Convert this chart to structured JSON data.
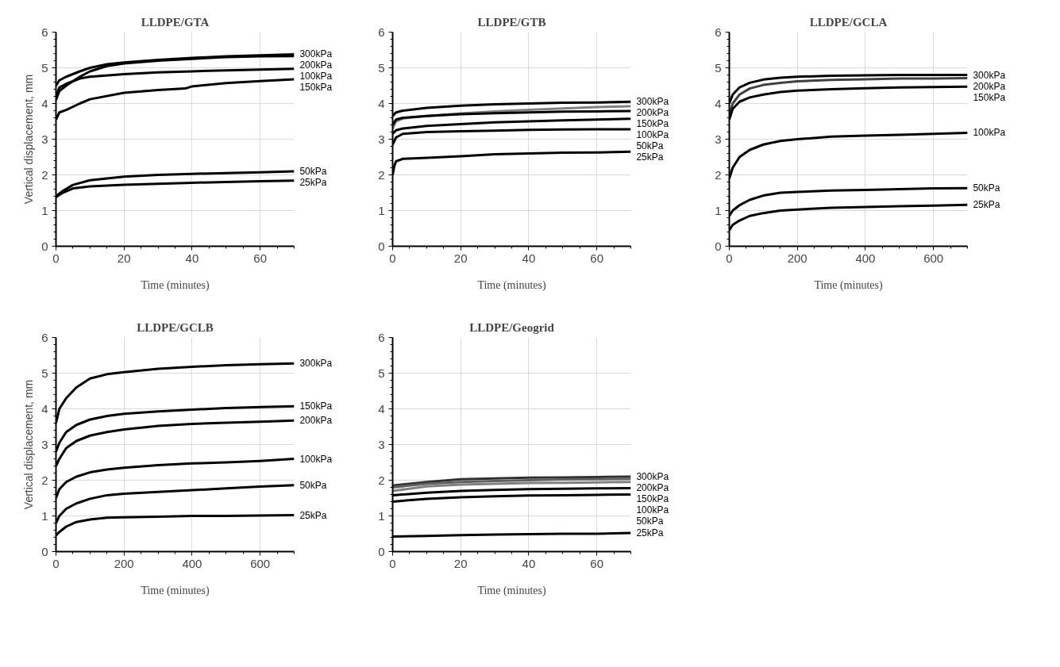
{
  "chart_data": [
    {
      "type": "line",
      "title": "LLDPE/GTA",
      "xlabel": "Time (minutes)",
      "ylabel": "Vertical displacement, mm",
      "xlim": [
        0,
        70
      ],
      "ylim": [
        0,
        6
      ],
      "xticks": [
        0,
        20,
        40,
        60
      ],
      "yticks": [
        0,
        1,
        2,
        3,
        4,
        5,
        6
      ],
      "grid": true,
      "series": [
        {
          "name": "300kPa",
          "color": "#000000",
          "x": [
            0,
            1,
            3,
            7,
            10,
            15,
            20,
            30,
            40,
            50,
            60,
            70
          ],
          "values": [
            4.5,
            4.65,
            4.75,
            4.9,
            5.0,
            5.1,
            5.15,
            5.22,
            5.28,
            5.32,
            5.35,
            5.38
          ]
        },
        {
          "name": "200kPa",
          "color": "#000000",
          "x": [
            0,
            1,
            3,
            7,
            10,
            15,
            20,
            30,
            40,
            50,
            60,
            70
          ],
          "values": [
            4.1,
            4.35,
            4.5,
            4.75,
            4.9,
            5.05,
            5.12,
            5.2,
            5.25,
            5.3,
            5.32,
            5.33
          ]
        },
        {
          "name": "100kPa",
          "color": "#000000",
          "x": [
            0,
            1,
            3,
            7,
            10,
            20,
            30,
            40,
            50,
            60,
            70
          ],
          "values": [
            4.2,
            4.45,
            4.55,
            4.7,
            4.75,
            4.82,
            4.87,
            4.9,
            4.93,
            4.95,
            4.97
          ]
        },
        {
          "name": "150kPa",
          "color": "#000000",
          "x": [
            0,
            1,
            3,
            7,
            10,
            20,
            30,
            38,
            40,
            50,
            60,
            70
          ],
          "values": [
            3.55,
            3.75,
            3.82,
            4.0,
            4.12,
            4.3,
            4.38,
            4.42,
            4.48,
            4.57,
            4.63,
            4.68
          ]
        },
        {
          "name": "50kPa",
          "color": "#000000",
          "x": [
            0,
            2,
            5,
            10,
            20,
            30,
            40,
            50,
            60,
            70
          ],
          "values": [
            1.4,
            1.55,
            1.72,
            1.85,
            1.95,
            2.0,
            2.03,
            2.05,
            2.07,
            2.1
          ]
        },
        {
          "name": "25kPa",
          "color": "#000000",
          "x": [
            0,
            2,
            5,
            10,
            20,
            30,
            40,
            50,
            60,
            70
          ],
          "values": [
            1.38,
            1.5,
            1.62,
            1.68,
            1.72,
            1.75,
            1.78,
            1.8,
            1.82,
            1.84
          ]
        }
      ]
    },
    {
      "type": "line",
      "title": "LLDPE/GTB",
      "xlabel": "Time (minutes)",
      "xlim": [
        0,
        70
      ],
      "ylim": [
        0,
        6
      ],
      "xticks": [
        0,
        20,
        40,
        60
      ],
      "yticks": [
        0,
        1,
        2,
        3,
        4,
        5,
        6
      ],
      "grid": true,
      "series": [
        {
          "name": "300kPa",
          "color": "#000000",
          "x": [
            0,
            1,
            3,
            10,
            20,
            30,
            40,
            50,
            60,
            70
          ],
          "values": [
            3.65,
            3.75,
            3.8,
            3.88,
            3.94,
            3.98,
            4.0,
            4.02,
            4.03,
            4.05
          ]
        },
        {
          "name": "200kPa",
          "color": "#808080",
          "x": [
            0,
            1,
            3,
            10,
            20,
            30,
            40,
            50,
            60,
            70
          ],
          "values": [
            3.3,
            3.5,
            3.58,
            3.65,
            3.72,
            3.78,
            3.82,
            3.86,
            3.9,
            3.92
          ]
        },
        {
          "name": "150kPa",
          "color": "#000000",
          "x": [
            0,
            1,
            3,
            10,
            20,
            30,
            40,
            50,
            60,
            70
          ],
          "values": [
            3.4,
            3.55,
            3.6,
            3.65,
            3.7,
            3.73,
            3.75,
            3.77,
            3.78,
            3.79
          ]
        },
        {
          "name": "100kPa",
          "color": "#000000",
          "x": [
            0,
            1,
            3,
            10,
            20,
            30,
            40,
            50,
            60,
            70
          ],
          "values": [
            3.15,
            3.25,
            3.3,
            3.37,
            3.42,
            3.47,
            3.5,
            3.53,
            3.55,
            3.57
          ]
        },
        {
          "name": "50kPa",
          "color": "#000000",
          "x": [
            0,
            1,
            3,
            10,
            20,
            30,
            40,
            50,
            60,
            70
          ],
          "values": [
            2.85,
            3.05,
            3.15,
            3.2,
            3.22,
            3.24,
            3.26,
            3.27,
            3.28,
            3.28
          ]
        },
        {
          "name": "25kPa",
          "color": "#000000",
          "x": [
            0,
            0.5,
            1,
            3,
            10,
            20,
            25,
            30,
            40,
            50,
            60,
            70
          ],
          "values": [
            2.0,
            2.25,
            2.38,
            2.45,
            2.48,
            2.52,
            2.55,
            2.58,
            2.6,
            2.62,
            2.63,
            2.65
          ]
        }
      ]
    },
    {
      "type": "line",
      "title": "LLDPE/GCLA",
      "xlabel": "Time (minutes)",
      "xlim": [
        0,
        700
      ],
      "ylim": [
        0,
        6
      ],
      "xticks": [
        0,
        200,
        400,
        600
      ],
      "yticks": [
        0,
        1,
        2,
        3,
        4,
        5,
        6
      ],
      "grid": true,
      "series": [
        {
          "name": "300kPa",
          "color": "#000000",
          "x": [
            0,
            10,
            30,
            60,
            100,
            150,
            200,
            300,
            400,
            500,
            600,
            700
          ],
          "values": [
            4.0,
            4.25,
            4.45,
            4.58,
            4.67,
            4.72,
            4.75,
            4.78,
            4.79,
            4.8,
            4.8,
            4.8
          ]
        },
        {
          "name": "200kPa",
          "color": "#404040",
          "x": [
            0,
            10,
            30,
            60,
            100,
            150,
            200,
            300,
            400,
            500,
            600,
            700
          ],
          "values": [
            3.7,
            4.0,
            4.25,
            4.42,
            4.52,
            4.58,
            4.62,
            4.66,
            4.68,
            4.7,
            4.7,
            4.71
          ]
        },
        {
          "name": "150kPa",
          "color": "#000000",
          "x": [
            0,
            10,
            30,
            60,
            100,
            150,
            200,
            300,
            400,
            500,
            600,
            700
          ],
          "values": [
            3.55,
            3.85,
            4.05,
            4.17,
            4.25,
            4.32,
            4.36,
            4.4,
            4.43,
            4.45,
            4.46,
            4.47
          ]
        },
        {
          "name": "100kPa",
          "color": "#000000",
          "x": [
            0,
            10,
            30,
            60,
            100,
            150,
            200,
            300,
            400,
            500,
            600,
            700
          ],
          "values": [
            1.9,
            2.2,
            2.5,
            2.7,
            2.85,
            2.95,
            3.0,
            3.07,
            3.1,
            3.12,
            3.15,
            3.18
          ]
        },
        {
          "name": "50kPa",
          "color": "#000000",
          "x": [
            0,
            10,
            30,
            60,
            100,
            150,
            200,
            300,
            400,
            500,
            600,
            700
          ],
          "values": [
            0.85,
            1.0,
            1.15,
            1.3,
            1.42,
            1.5,
            1.52,
            1.56,
            1.58,
            1.6,
            1.62,
            1.63
          ]
        },
        {
          "name": "25kPa",
          "color": "#000000",
          "x": [
            0,
            10,
            30,
            60,
            100,
            150,
            200,
            300,
            400,
            500,
            600,
            700
          ],
          "values": [
            0.45,
            0.6,
            0.72,
            0.85,
            0.93,
            1.0,
            1.03,
            1.08,
            1.1,
            1.12,
            1.14,
            1.16
          ]
        }
      ]
    },
    {
      "type": "line",
      "title": "LLDPE/GCLB",
      "xlabel": "Time (minutes)",
      "ylabel": "Vertical displacement, mm",
      "xlim": [
        0,
        700
      ],
      "ylim": [
        0,
        6
      ],
      "xticks": [
        0,
        200,
        400,
        600
      ],
      "yticks": [
        0,
        1,
        2,
        3,
        4,
        5,
        6
      ],
      "grid": true,
      "series": [
        {
          "name": "300kPa",
          "color": "#000000",
          "x": [
            0,
            10,
            30,
            60,
            100,
            150,
            200,
            300,
            400,
            500,
            600,
            700
          ],
          "values": [
            3.6,
            4.0,
            4.3,
            4.6,
            4.85,
            4.97,
            5.03,
            5.12,
            5.18,
            5.22,
            5.25,
            5.27
          ]
        },
        {
          "name": "150kPa",
          "color": "#000000",
          "x": [
            0,
            10,
            30,
            60,
            100,
            150,
            200,
            300,
            400,
            500,
            600,
            700
          ],
          "values": [
            2.8,
            3.05,
            3.35,
            3.55,
            3.7,
            3.8,
            3.86,
            3.93,
            3.98,
            4.02,
            4.05,
            4.07
          ]
        },
        {
          "name": "200kPa",
          "color": "#000000",
          "x": [
            0,
            10,
            30,
            60,
            100,
            150,
            200,
            300,
            400,
            500,
            600,
            700
          ],
          "values": [
            2.4,
            2.6,
            2.9,
            3.1,
            3.25,
            3.35,
            3.42,
            3.52,
            3.58,
            3.61,
            3.64,
            3.67
          ]
        },
        {
          "name": "100kPa",
          "color": "#000000",
          "x": [
            0,
            10,
            30,
            60,
            100,
            150,
            200,
            300,
            400,
            500,
            600,
            700
          ],
          "values": [
            1.5,
            1.75,
            1.95,
            2.1,
            2.22,
            2.3,
            2.35,
            2.42,
            2.47,
            2.5,
            2.54,
            2.6
          ]
        },
        {
          "name": "50kPa",
          "color": "#000000",
          "x": [
            0,
            10,
            30,
            60,
            100,
            150,
            200,
            300,
            400,
            500,
            600,
            700
          ],
          "values": [
            0.8,
            1.0,
            1.2,
            1.35,
            1.48,
            1.58,
            1.62,
            1.67,
            1.72,
            1.77,
            1.82,
            1.86
          ]
        },
        {
          "name": "25kPa",
          "color": "#000000",
          "x": [
            0,
            10,
            30,
            60,
            100,
            150,
            200,
            300,
            400,
            500,
            600,
            700
          ],
          "values": [
            0.45,
            0.55,
            0.7,
            0.83,
            0.9,
            0.95,
            0.96,
            0.98,
            1.0,
            1.0,
            1.01,
            1.02
          ]
        }
      ]
    },
    {
      "type": "line",
      "title": "LLDPE/Geogrid",
      "xlabel": "Time (minutes)",
      "xlim": [
        0,
        70
      ],
      "ylim": [
        0,
        6
      ],
      "xticks": [
        0,
        20,
        40,
        60
      ],
      "yticks": [
        0,
        1,
        2,
        3,
        4,
        5,
        6
      ],
      "grid": true,
      "series": [
        {
          "name": "300kPa",
          "color": "#303030",
          "x": [
            0,
            10,
            20,
            30,
            40,
            50,
            60,
            70
          ],
          "values": [
            1.85,
            1.95,
            2.03,
            2.05,
            2.07,
            2.08,
            2.09,
            2.1
          ]
        },
        {
          "name": "200kPa",
          "color": "#606060",
          "x": [
            0,
            10,
            20,
            30,
            40,
            50,
            60,
            70
          ],
          "values": [
            1.8,
            1.9,
            1.95,
            1.98,
            2.0,
            2.02,
            2.03,
            2.04
          ]
        },
        {
          "name": "150kPa",
          "color": "#808080",
          "x": [
            0,
            10,
            20,
            30,
            40,
            50,
            60,
            70
          ],
          "values": [
            1.7,
            1.83,
            1.88,
            1.9,
            1.92,
            1.93,
            1.94,
            1.95
          ]
        },
        {
          "name": "100kPa",
          "color": "#000000",
          "x": [
            0,
            10,
            20,
            30,
            40,
            50,
            60,
            70
          ],
          "values": [
            1.58,
            1.65,
            1.7,
            1.73,
            1.75,
            1.76,
            1.77,
            1.78
          ]
        },
        {
          "name": "50kPa",
          "color": "#000000",
          "x": [
            0,
            10,
            20,
            30,
            40,
            50,
            60,
            70
          ],
          "values": [
            1.4,
            1.48,
            1.52,
            1.55,
            1.57,
            1.58,
            1.59,
            1.6
          ]
        },
        {
          "name": "25kPa",
          "color": "#000000",
          "x": [
            0,
            10,
            20,
            30,
            40,
            50,
            60,
            70
          ],
          "values": [
            0.42,
            0.44,
            0.46,
            0.48,
            0.49,
            0.5,
            0.5,
            0.52
          ]
        }
      ]
    }
  ]
}
